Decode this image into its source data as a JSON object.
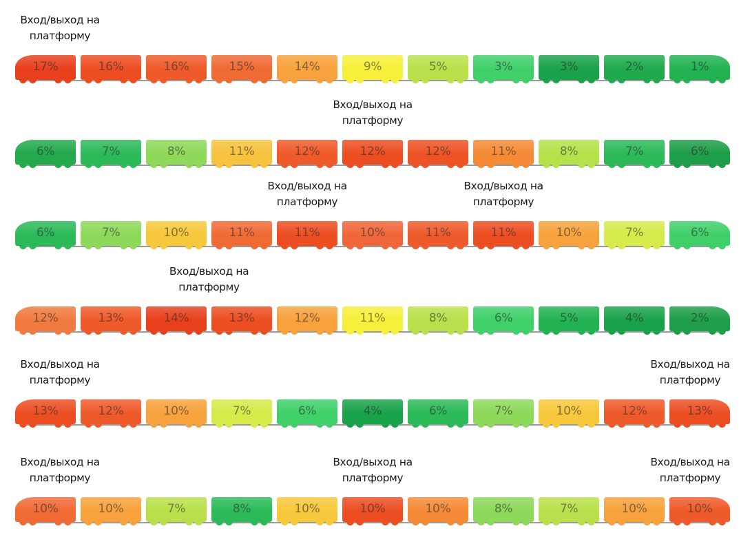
{
  "door_label": "Вход/выход на\nплатформу",
  "trains": [
    {
      "doors": [
        0
      ],
      "cars": [
        {
          "value": "17%",
          "color": "#e8401d"
        },
        {
          "value": "16%",
          "color": "#ec4e22"
        },
        {
          "value": "16%",
          "color": "#ef5a2a"
        },
        {
          "value": "15%",
          "color": "#f06a34"
        },
        {
          "value": "14%",
          "color": "#f7a23c"
        },
        {
          "value": "9%",
          "color": "#f6f03a"
        },
        {
          "value": "5%",
          "color": "#b9e04a"
        },
        {
          "value": "3%",
          "color": "#3fd06a"
        },
        {
          "value": "3%",
          "color": "#1aa24a"
        },
        {
          "value": "2%",
          "color": "#1faa4e"
        },
        {
          "value": "1%",
          "color": "#22b252"
        }
      ]
    },
    {
      "doors": [
        5
      ],
      "cars": [
        {
          "value": "6%",
          "color": "#22aa4c"
        },
        {
          "value": "7%",
          "color": "#2cba58"
        },
        {
          "value": "8%",
          "color": "#8ed85a"
        },
        {
          "value": "11%",
          "color": "#f7c23c"
        },
        {
          "value": "12%",
          "color": "#ef5a2a"
        },
        {
          "value": "12%",
          "color": "#ec4e22"
        },
        {
          "value": "12%",
          "color": "#ee5326"
        },
        {
          "value": "11%",
          "color": "#f58a36"
        },
        {
          "value": "8%",
          "color": "#b4e24a"
        },
        {
          "value": "7%",
          "color": "#2cba58"
        },
        {
          "value": "6%",
          "color": "#1e9e48"
        }
      ]
    },
    {
      "doors": [
        4,
        7
      ],
      "cars": [
        {
          "value": "6%",
          "color": "#2cba58"
        },
        {
          "value": "7%",
          "color": "#8ed85a"
        },
        {
          "value": "10%",
          "color": "#f7c83c"
        },
        {
          "value": "11%",
          "color": "#f06a34"
        },
        {
          "value": "11%",
          "color": "#ec4e22"
        },
        {
          "value": "10%",
          "color": "#f0663a"
        },
        {
          "value": "11%",
          "color": "#ee5a2c"
        },
        {
          "value": "11%",
          "color": "#ec4e22"
        },
        {
          "value": "10%",
          "color": "#f7a23c"
        },
        {
          "value": "7%",
          "color": "#d6ea4a"
        },
        {
          "value": "6%",
          "color": "#3fd06a"
        }
      ]
    },
    {
      "doors": [
        2.5
      ],
      "cars": [
        {
          "value": "12%",
          "color": "#f07a40"
        },
        {
          "value": "13%",
          "color": "#ef5a2a"
        },
        {
          "value": "14%",
          "color": "#e8401d"
        },
        {
          "value": "13%",
          "color": "#ec4e22"
        },
        {
          "value": "12%",
          "color": "#f7a23c"
        },
        {
          "value": "11%",
          "color": "#f6f03a"
        },
        {
          "value": "8%",
          "color": "#b9e04a"
        },
        {
          "value": "6%",
          "color": "#3fd06a"
        },
        {
          "value": "5%",
          "color": "#22b252"
        },
        {
          "value": "4%",
          "color": "#1aa24a"
        },
        {
          "value": "2%",
          "color": "#1e9e48"
        }
      ]
    },
    {
      "doors": [
        0,
        10
      ],
      "cars": [
        {
          "value": "13%",
          "color": "#ec4e22"
        },
        {
          "value": "12%",
          "color": "#ef5a2a"
        },
        {
          "value": "10%",
          "color": "#f7a23c"
        },
        {
          "value": "7%",
          "color": "#d6ea4a"
        },
        {
          "value": "6%",
          "color": "#3fd06a"
        },
        {
          "value": "4%",
          "color": "#1aa24a"
        },
        {
          "value": "6%",
          "color": "#2cba58"
        },
        {
          "value": "7%",
          "color": "#8ed85a"
        },
        {
          "value": "10%",
          "color": "#f7c83c"
        },
        {
          "value": "12%",
          "color": "#ef5a2a"
        },
        {
          "value": "13%",
          "color": "#ec4e22"
        }
      ]
    },
    {
      "doors": [
        0,
        5,
        10
      ],
      "cars": [
        {
          "value": "10%",
          "color": "#f06a34"
        },
        {
          "value": "10%",
          "color": "#f7a23c"
        },
        {
          "value": "7%",
          "color": "#b9e04a"
        },
        {
          "value": "8%",
          "color": "#2cba58"
        },
        {
          "value": "10%",
          "color": "#f7c83c"
        },
        {
          "value": "10%",
          "color": "#ec4e22"
        },
        {
          "value": "10%",
          "color": "#f58a36"
        },
        {
          "value": "8%",
          "color": "#8ed85a"
        },
        {
          "value": "7%",
          "color": "#b9e04a"
        },
        {
          "value": "10%",
          "color": "#f7a23c"
        },
        {
          "value": "10%",
          "color": "#ef5a2a"
        }
      ]
    }
  ]
}
